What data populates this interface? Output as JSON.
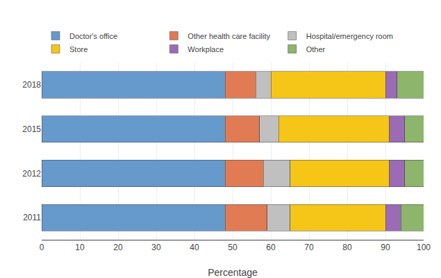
{
  "chart_data": {
    "type": "bar",
    "orientation": "horizontal",
    "stacked": true,
    "categories": [
      "2018",
      "2015",
      "2012",
      "2011"
    ],
    "series": [
      {
        "name": "Doctor's office",
        "color": "#6699CC",
        "values": [
          48.0,
          48.0,
          48.0,
          48.0
        ]
      },
      {
        "name": "Other health care facility",
        "color": "#E07B54",
        "values": [
          8.0,
          9.0,
          10.0,
          11.0
        ]
      },
      {
        "name": "Hospital/emergency room",
        "color": "#C0C0C0",
        "values": [
          4.0,
          5.0,
          7.0,
          6.0
        ]
      },
      {
        "name": "Store",
        "color": "#F5C518",
        "values": [
          30.0,
          29.0,
          26.0,
          25.0
        ]
      },
      {
        "name": "Workplace",
        "color": "#9B6BB5",
        "values": [
          3.0,
          4.0,
          4.0,
          4.0
        ]
      },
      {
        "name": "Other",
        "color": "#8DB56B",
        "values": [
          7.0,
          5.0,
          5.0,
          6.0
        ]
      }
    ],
    "xlabel": "Percentage",
    "xlim": [
      0,
      100
    ],
    "xticks": [
      0,
      10,
      20,
      30,
      40,
      50,
      60,
      70,
      80,
      90,
      100
    ],
    "grid": true,
    "legend": "upper left"
  }
}
